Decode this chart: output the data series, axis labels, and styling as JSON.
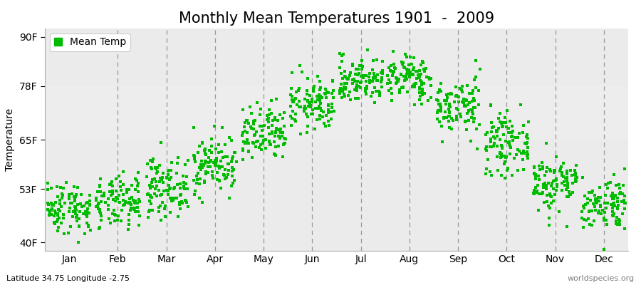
{
  "title": "Monthly Mean Temperatures 1901  -  2009",
  "ylabel": "Temperature",
  "xlabel_months": [
    "Jan",
    "Feb",
    "Mar",
    "Apr",
    "May",
    "Jun",
    "Jul",
    "Aug",
    "Sep",
    "Oct",
    "Nov",
    "Dec"
  ],
  "ytick_labels": [
    "40F",
    "53F",
    "65F",
    "78F",
    "90F"
  ],
  "ytick_values": [
    40,
    53,
    65,
    78,
    90
  ],
  "ylim": [
    38,
    92
  ],
  "dot_color": "#00BB00",
  "dot_size": 6,
  "bg_color_main": "#EBEBEB",
  "bg_color_band": "#E0E0E0",
  "figure_background": "#FFFFFF",
  "legend_label": "Mean Temp",
  "bottom_left_text": "Latitude 34.75 Longitude -2.75",
  "bottom_right_text": "worldspecies.org",
  "title_fontsize": 15,
  "axis_fontsize": 10,
  "monthly_means": [
    48.5,
    49.5,
    53.5,
    59.0,
    66.0,
    73.5,
    79.5,
    80.0,
    73.0,
    64.0,
    54.5,
    49.5
  ],
  "monthly_stds": [
    3.2,
    3.2,
    3.5,
    3.5,
    3.5,
    3.2,
    2.8,
    2.8,
    3.5,
    3.5,
    3.5,
    3.2
  ],
  "n_years": 109,
  "vline_color": "#888888",
  "vline_positions": [
    1.5,
    2.5,
    3.5,
    4.5,
    5.5,
    6.5,
    7.5,
    8.5,
    9.5,
    10.5,
    11.5
  ]
}
